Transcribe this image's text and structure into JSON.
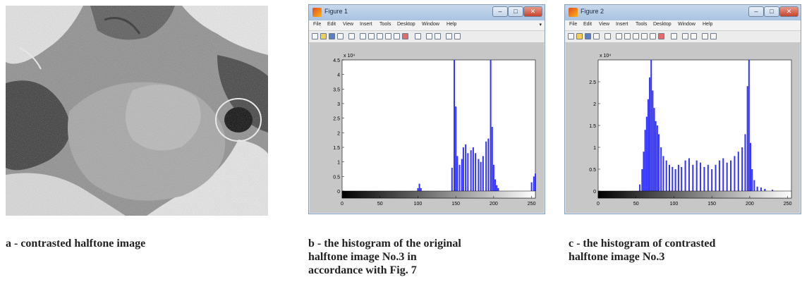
{
  "panel_a": {
    "caption": "a - contrasted halftone image"
  },
  "figure_1": {
    "window_title": "Figure 1",
    "menus": [
      "File",
      "Edit",
      "View",
      "Insert",
      "Tools",
      "Desktop",
      "Window",
      "Help"
    ],
    "caption_lines": [
      "b - the histogram of the original",
      "halftone image No.3 in",
      "accordance with Fig. 7"
    ]
  },
  "figure_2": {
    "window_title": "Figure 2",
    "menus": [
      "File",
      "Edit",
      "View",
      "Insert",
      "Tools",
      "Desktop",
      "Window",
      "Help"
    ],
    "caption_lines": [
      "c - the histogram of contrasted",
      "halftone image No.3"
    ]
  },
  "chart_data": [
    {
      "type": "bar",
      "title": "",
      "exponent_label": "x 10⁴",
      "xticks": [
        "0",
        "50",
        "100",
        "150",
        "200",
        "250"
      ],
      "yticks": [
        "0",
        "0.5",
        "1",
        "1.5",
        "2",
        "2.5",
        "3",
        "3.5",
        "4",
        "4.5"
      ],
      "xlim": [
        0,
        255
      ],
      "ylim": [
        0,
        4.5
      ],
      "bar_color": "#3333ff",
      "colorbar": "grayscale",
      "series": [
        {
          "x": [
            100,
            102,
            104,
            145,
            148,
            150,
            152,
            155,
            158,
            160,
            163,
            166,
            170,
            173,
            176,
            180,
            183,
            186,
            190,
            193,
            196,
            198,
            200,
            202,
            204,
            206,
            250,
            253,
            255
          ],
          "y": [
            0.1,
            0.25,
            0.1,
            0.8,
            4.6,
            2.9,
            1.2,
            0.9,
            1.1,
            1.5,
            1.6,
            1.3,
            1.4,
            1.5,
            1.3,
            1.1,
            1.0,
            1.2,
            1.7,
            1.8,
            4.5,
            2.2,
            0.9,
            0.4,
            0.2,
            0.1,
            0.3,
            0.5,
            0.6
          ]
        }
      ]
    },
    {
      "type": "bar",
      "title": "",
      "exponent_label": "x 10⁴",
      "xticks": [
        "0",
        "50",
        "100",
        "150",
        "200",
        "250"
      ],
      "yticks": [
        "0",
        "0.5",
        "1",
        "1.5",
        "2",
        "2.5"
      ],
      "xlim": [
        0,
        255
      ],
      "ylim": [
        0,
        3.0
      ],
      "bar_color": "#3333ff",
      "colorbar": "grayscale",
      "series": [
        {
          "x": [
            55,
            58,
            60,
            62,
            64,
            66,
            68,
            70,
            72,
            74,
            76,
            78,
            80,
            83,
            86,
            90,
            94,
            98,
            102,
            106,
            110,
            115,
            120,
            125,
            130,
            135,
            140,
            145,
            150,
            155,
            160,
            165,
            170,
            175,
            180,
            185,
            190,
            194,
            197,
            199,
            201,
            203,
            206,
            210,
            215,
            220,
            230
          ],
          "y": [
            0.15,
            0.5,
            0.9,
            1.4,
            1.7,
            2.1,
            2.6,
            3.0,
            2.3,
            1.9,
            1.6,
            1.5,
            1.3,
            1.0,
            0.8,
            0.7,
            0.6,
            0.55,
            0.5,
            0.6,
            0.55,
            0.7,
            0.75,
            0.6,
            0.7,
            0.65,
            0.55,
            0.6,
            0.5,
            0.6,
            0.7,
            0.75,
            0.65,
            0.7,
            0.8,
            0.9,
            1.0,
            1.3,
            2.4,
            3.0,
            1.1,
            0.5,
            0.25,
            0.1,
            0.08,
            0.05,
            0.03
          ]
        }
      ]
    }
  ]
}
